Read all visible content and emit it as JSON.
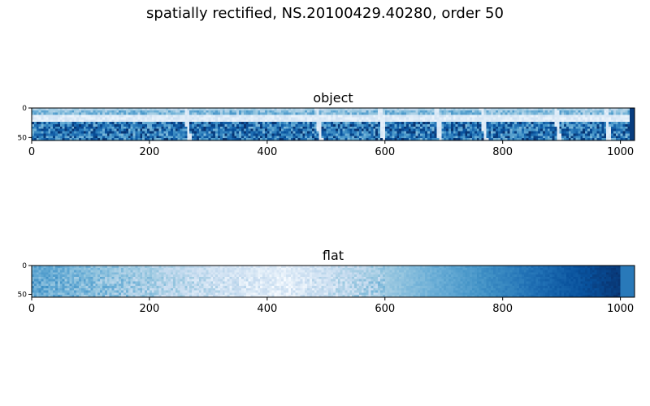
{
  "figure": {
    "suptitle": "spatially rectified, NS.20100429.40280, order 50"
  },
  "chart_data": [
    {
      "type": "heatmap",
      "title": "object",
      "colormap": "Blues",
      "xlim": [
        0,
        1024
      ],
      "ylim": [
        55,
        0
      ],
      "x_ticks": [
        0,
        200,
        400,
        600,
        800,
        1000
      ],
      "y_ticks": [
        0,
        50
      ],
      "features": {
        "bright_sky_band_rows": [
          10,
          22
        ],
        "emission_lines_x": [
          262,
          485,
          592,
          688,
          765,
          890,
          975
        ]
      }
    },
    {
      "type": "heatmap",
      "title": "flat",
      "colormap": "Blues",
      "xlim": [
        0,
        1024
      ],
      "ylim": [
        55,
        0
      ],
      "x_ticks": [
        0,
        200,
        400,
        600,
        800,
        1000
      ],
      "y_ticks": [
        0,
        50
      ],
      "features": {
        "brightest_x": 420,
        "right_block_x": [
          1002,
          1024
        ]
      }
    }
  ]
}
